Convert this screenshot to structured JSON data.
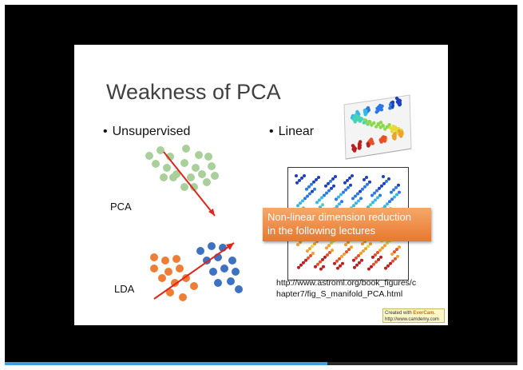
{
  "slide": {
    "title": "Weakness of PCA",
    "bullet_dot": "•",
    "bullet_unsupervised": "Unsupervised",
    "bullet_linear": "Linear",
    "label_pca": "PCA",
    "label_lda": "LDA",
    "callout_line1": "Non-linear dimension reduction",
    "callout_line2": "in the following lectures",
    "url_line1": "http://www.astroml.org/book_figures/c",
    "url_line2": "hapter7/fig_S_manifold_PCA.html",
    "watermark_line1_prefix": "Created with ",
    "watermark_brand": "EverCam.",
    "watermark_line2": "http://www.camdemy.com"
  },
  "colors": {
    "green_dot": "#a9cf9a",
    "orange_dot": "#ee7d35",
    "blue_dot": "#3d71c1",
    "arrow": "#e0261c",
    "callout": "#ee8a45"
  },
  "video": {
    "progress": 0.63
  }
}
